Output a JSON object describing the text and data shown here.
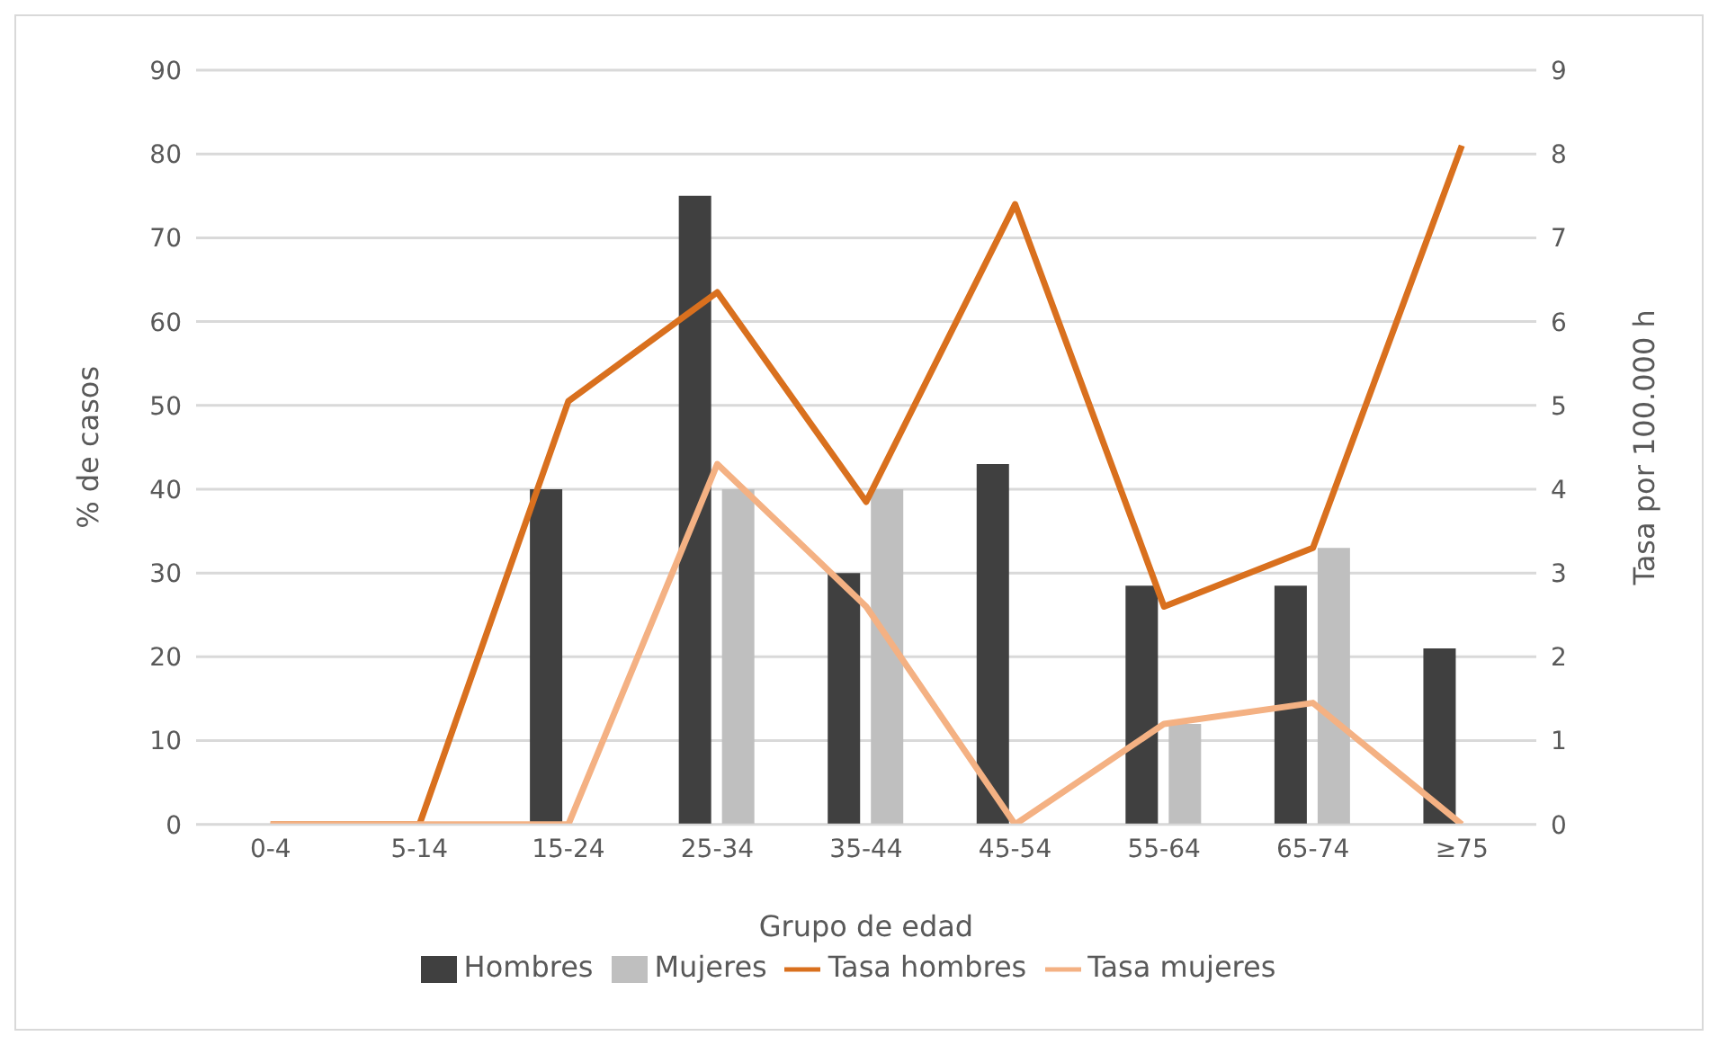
{
  "chart_data": {
    "type": "bar",
    "xlabel": "Grupo de edad",
    "ylabel": "% de casos",
    "y2label": "Tasa por 100.000 h",
    "categories": [
      "0-4",
      "5-14",
      "15-24",
      "25-34",
      "35-44",
      "45-54",
      "55-64",
      "65-74",
      "≥75"
    ],
    "series": [
      {
        "name": "Hombres",
        "color": "#404040",
        "values": [
          0,
          0,
          40,
          75,
          30,
          43,
          28.5,
          28.5,
          21
        ]
      },
      {
        "name": "Mujeres",
        "color": "#bfbfbf",
        "values": [
          0,
          0,
          0,
          40,
          40,
          0,
          12,
          33,
          0
        ]
      },
      {
        "name": "Tasa hombres",
        "type": "line",
        "axis": "y2",
        "color": "#d9701e",
        "values": [
          0,
          0,
          5.05,
          6.35,
          3.85,
          7.4,
          2.6,
          3.3,
          8.1
        ]
      },
      {
        "name": "Tasa mujeres",
        "type": "line",
        "axis": "y2",
        "color": "#f4b183",
        "values": [
          0,
          0,
          0,
          4.3,
          2.6,
          0,
          1.2,
          1.45,
          0
        ]
      }
    ],
    "ylim": [
      0,
      90
    ],
    "yticks": [
      0,
      10,
      20,
      30,
      40,
      50,
      60,
      70,
      80,
      90
    ],
    "y2lim": [
      0,
      9
    ],
    "y2ticks": [
      0,
      1,
      2,
      3,
      4,
      5,
      6,
      7,
      8,
      9
    ],
    "grid": "y",
    "legend": "bottom",
    "marker": "none"
  }
}
